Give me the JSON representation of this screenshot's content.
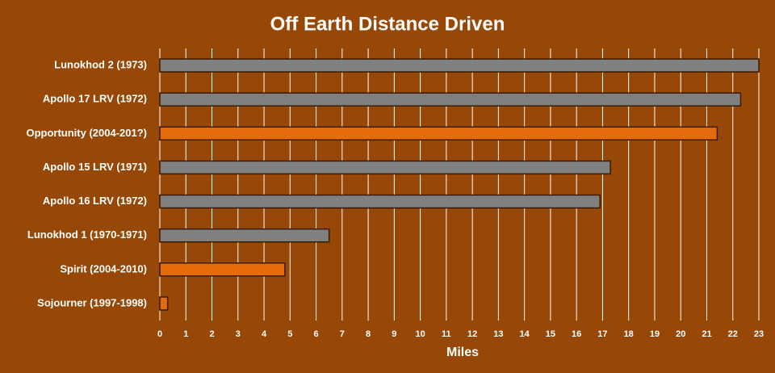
{
  "chart_data": {
    "type": "bar",
    "orientation": "horizontal",
    "title": "Off Earth Distance Driven",
    "x_label": "Miles",
    "categories": [
      "Lunokhod 2 (1973)",
      "Apollo 17 LRV (1972)",
      "Opportunity (2004-201?)",
      "Apollo 15 LRV (1971)",
      "Apollo 16 LRV (1972)",
      "Lunokhod 1 (1970-1971)",
      "Spirit (2004-2010)",
      "Sojourner (1997-1998)"
    ],
    "values": [
      23,
      22.3,
      21.4,
      17.3,
      16.9,
      6.5,
      4.8,
      0.3
    ],
    "colors": [
      "#808080",
      "#808080",
      "#e46c0a",
      "#808080",
      "#808080",
      "#808080",
      "#e46c0a",
      "#e46c0a"
    ],
    "xlim": [
      0,
      23
    ],
    "xticks": [
      0,
      1,
      2,
      3,
      4,
      5,
      6,
      7,
      8,
      9,
      10,
      11,
      12,
      13,
      14,
      15,
      16,
      17,
      18,
      19,
      20,
      21,
      22,
      23
    ],
    "grid": true
  }
}
